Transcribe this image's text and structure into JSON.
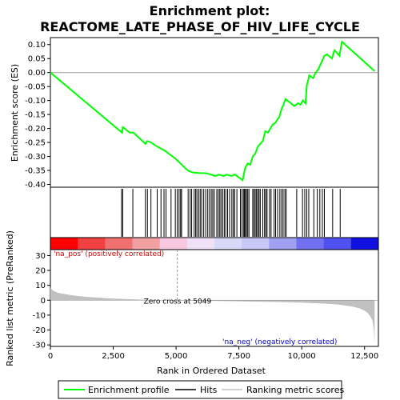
{
  "chart_data": {
    "type": "line",
    "title_line1": "Enrichment plot:",
    "title_line2": "REACTOME_LATE_PHASE_OF_HIV_LIFE_CYCLE",
    "top_panel": {
      "ylabel": "Enrichment score (ES)",
      "ylim": [
        -0.41,
        0.125
      ],
      "yticks": [
        0.1,
        0.05,
        0.0,
        -0.05,
        -0.1,
        -0.15,
        -0.2,
        -0.25,
        -0.3,
        -0.35,
        -0.4
      ],
      "ytick_labels": [
        "0.10",
        "0.05",
        "0.00",
        "-0.05",
        "-0.10",
        "-0.15",
        "-0.20",
        "-0.25",
        "-0.30",
        "-0.35",
        "-0.40"
      ],
      "series": {
        "name": "Enrichment profile",
        "color": "#00ff00",
        "x": [
          0,
          2850,
          2880,
          3150,
          3300,
          3780,
          3850,
          4000,
          4250,
          4560,
          5000,
          5400,
          5500,
          5700,
          6000,
          6200,
          6400,
          6550,
          6700,
          6900,
          7000,
          7200,
          7350,
          7500,
          7650,
          7750,
          7850,
          7950,
          8050,
          8150,
          8250,
          8350,
          8450,
          8550,
          8650,
          8750,
          8850,
          8950,
          9050,
          9100,
          9200,
          9250,
          9350,
          9500,
          9700,
          9850,
          9950,
          10050,
          10150,
          10200,
          10250,
          10300,
          10450,
          10550,
          10650,
          10700,
          10800,
          10900,
          11000,
          11200,
          11300,
          11500,
          11600,
          12900
        ],
        "y": [
          0.0,
          -0.215,
          -0.195,
          -0.215,
          -0.215,
          -0.255,
          -0.245,
          -0.25,
          -0.265,
          -0.28,
          -0.31,
          -0.345,
          -0.352,
          -0.358,
          -0.36,
          -0.36,
          -0.365,
          -0.37,
          -0.365,
          -0.37,
          -0.365,
          -0.37,
          -0.365,
          -0.375,
          -0.385,
          -0.34,
          -0.325,
          -0.33,
          -0.3,
          -0.29,
          -0.265,
          -0.255,
          -0.245,
          -0.21,
          -0.215,
          -0.2,
          -0.185,
          -0.18,
          -0.165,
          -0.16,
          -0.13,
          -0.12,
          -0.095,
          -0.105,
          -0.12,
          -0.11,
          -0.115,
          -0.1,
          -0.11,
          -0.045,
          -0.03,
          -0.01,
          -0.02,
          0.0,
          0.01,
          0.02,
          0.04,
          0.06,
          0.065,
          0.05,
          0.08,
          0.06,
          0.11,
          0.005
        ]
      }
    },
    "hits": [
      2830,
      2880,
      3280,
      3780,
      3860,
      4000,
      4250,
      4400,
      4520,
      4600,
      4800,
      4970,
      5050,
      5120,
      5180,
      5220,
      5480,
      5560,
      5620,
      5720,
      5780,
      5830,
      5900,
      5960,
      6020,
      6100,
      6180,
      6260,
      6330,
      6400,
      6460,
      6520,
      6620,
      6680,
      6740,
      6790,
      6860,
      6920,
      6980,
      7050,
      7130,
      7220,
      7280,
      7330,
      7420,
      7560,
      7620,
      7680,
      7720,
      7760,
      7800,
      7850,
      7900,
      8050,
      8100,
      8150,
      8200,
      8250,
      8300,
      8350,
      8450,
      8520,
      8570,
      8620,
      8720,
      8780,
      8900,
      8960,
      9040,
      9130,
      9200,
      9260,
      9330,
      9380,
      9800,
      10030,
      10120,
      10200,
      10280,
      10480,
      10620,
      10720,
      10820,
      10900,
      11230,
      11530
    ],
    "bottom_panel": {
      "ylabel": "Ranked list metric (PreRanked)",
      "ylim": [
        -31,
        34
      ],
      "yticks": [
        30,
        20,
        10,
        0,
        -10,
        -20,
        -30
      ],
      "ytick_labels": [
        "30",
        "20",
        "10",
        "0",
        "-10",
        "-20",
        "-30"
      ],
      "series": {
        "name": "Ranking metric scores",
        "color": "#c0c0c0",
        "x": [
          0,
          100,
          300,
          600,
          1000,
          1500,
          2000,
          2500,
          3000,
          3500,
          4000,
          4500,
          5049,
          6000,
          7000,
          8000,
          9000,
          10000,
          11000,
          11500,
          12000,
          12300,
          12500,
          12650,
          12750,
          12820,
          12870,
          12900
        ],
        "y": [
          8.5,
          6.5,
          5.0,
          4.0,
          3.0,
          2.2,
          1.6,
          1.1,
          0.8,
          0.5,
          0.3,
          0.1,
          0.0,
          -0.3,
          -0.6,
          -0.9,
          -1.2,
          -1.6,
          -2.3,
          -3.0,
          -4.2,
          -5.5,
          -7.0,
          -9.0,
          -11.5,
          -14.0,
          -20.0,
          -29.0
        ]
      },
      "zero_cross_label": "Zero cross at 5049",
      "zero_cross_x": 5049,
      "pos_label": "'na_pos' (positively correlated)",
      "neg_label": "'na_neg' (negatively correlated)"
    },
    "heat_bar_colors": [
      "#ff0000",
      "#f04040",
      "#f07070",
      "#f0a0a0",
      "#f8c8e0",
      "#f0e0f8",
      "#d8d8f8",
      "#c8c8f8",
      "#a0a0f0",
      "#7070f0",
      "#5050f0",
      "#1010e0"
    ],
    "xlabel": "Rank in Ordered Dataset",
    "xlim": [
      0,
      13050
    ],
    "xticks": [
      0,
      2500,
      5000,
      7500,
      10000,
      12500
    ],
    "xtick_labels": [
      "0",
      "2,500",
      "5,000",
      "7,500",
      "10,000",
      "12,500"
    ],
    "legend": {
      "placement": "bottom",
      "entries": [
        {
          "label": "Enrichment profile",
          "color": "#00ff00"
        },
        {
          "label": "Hits",
          "color": "#000000"
        },
        {
          "label": "Ranking metric scores",
          "color": "#c0c0c0"
        }
      ]
    }
  }
}
